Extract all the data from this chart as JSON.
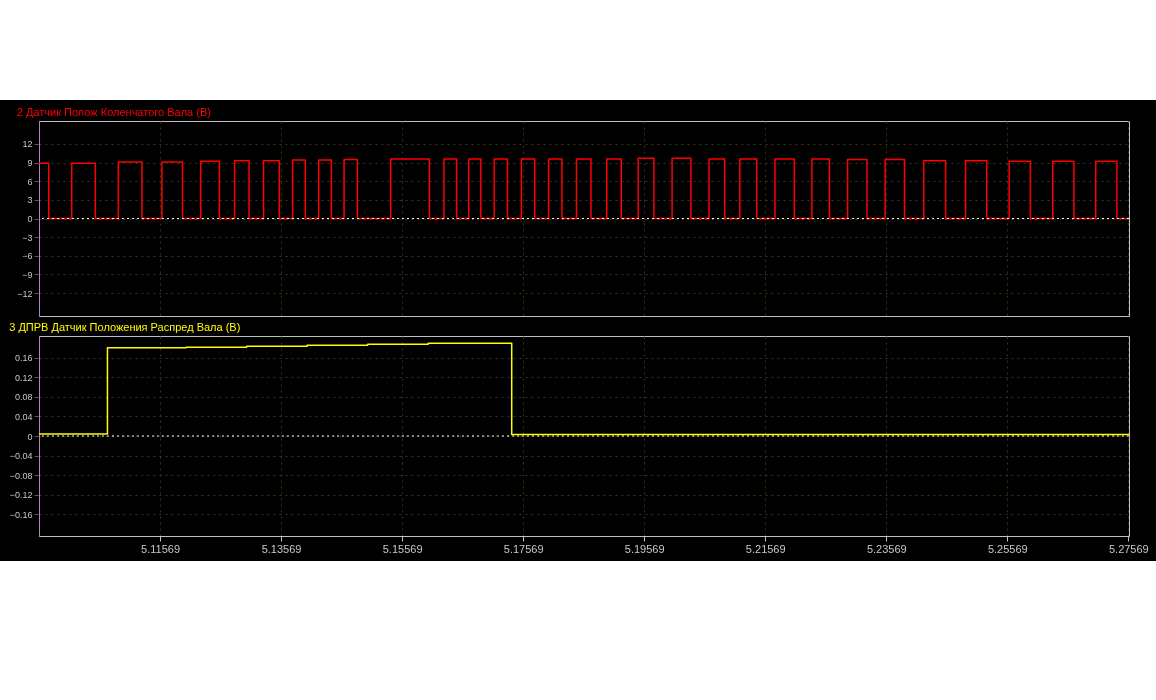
{
  "chart_data": [
    {
      "type": "step",
      "title": "2 Датчик Полож Коленчатого Вала (В)",
      "xlim": [
        5.09569,
        5.2758
      ],
      "xticks": [
        5.11569,
        5.13569,
        5.15569,
        5.17569,
        5.19569,
        5.21569,
        5.23569,
        5.25569,
        5.27569
      ],
      "ylim": [
        -15.7,
        15.7
      ],
      "yticks": [
        -12,
        -9,
        -6,
        -3,
        0,
        3,
        6,
        9,
        12
      ],
      "grid": true,
      "tick_labels": "y",
      "ref_lines": [
        {
          "axis": "y",
          "value": 0,
          "color": "#ffffff",
          "line_style": "dotted"
        }
      ],
      "series": [
        {
          "color": "#ff0000",
          "x": [
            5.0957,
            5.0973,
            5.1011,
            5.105,
            5.1088,
            5.1127,
            5.116,
            5.1194,
            5.1224,
            5.1255,
            5.128,
            5.1304,
            5.1328,
            5.1354,
            5.1376,
            5.1397,
            5.1419,
            5.144,
            5.1461,
            5.1483,
            5.1538,
            5.1602,
            5.1626,
            5.1647,
            5.1667,
            5.1687,
            5.1709,
            5.1731,
            5.1754,
            5.1776,
            5.1799,
            5.1821,
            5.1845,
            5.1869,
            5.1895,
            5.1919,
            5.1947,
            5.1973,
            5.2003,
            5.2034,
            5.2064,
            5.209,
            5.2115,
            5.2143,
            5.2173,
            5.2205,
            5.2234,
            5.2263,
            5.2293,
            5.2325,
            5.2355,
            5.2387,
            5.2419,
            5.2455,
            5.2488,
            5.2523,
            5.256,
            5.2595,
            5.2632,
            5.2667,
            5.2703,
            5.2738,
            5.2758
          ],
          "values": [
            8.9,
            0,
            8.9,
            0,
            9.1,
            0,
            9.1,
            0,
            9.2,
            0,
            9.3,
            0,
            9.3,
            0,
            9.4,
            0,
            9.4,
            0,
            9.5,
            0,
            9.6,
            0,
            9.6,
            0,
            9.6,
            0,
            9.6,
            0,
            9.6,
            0,
            9.6,
            0,
            9.6,
            0,
            9.6,
            0,
            9.7,
            0,
            9.7,
            0,
            9.6,
            0,
            9.6,
            0,
            9.6,
            0,
            9.6,
            0,
            9.5,
            0,
            9.5,
            0,
            9.3,
            0,
            9.3,
            0,
            9.2,
            0,
            9.2,
            0,
            9.2,
            0,
            0
          ]
        }
      ]
    },
    {
      "type": "step",
      "title": "3 ДПРВ Датчик Положения Распред Вала (В)",
      "xlim": [
        5.09569,
        5.2758
      ],
      "xticks": [
        5.11569,
        5.13569,
        5.15569,
        5.17569,
        5.19569,
        5.21569,
        5.23569,
        5.25569,
        5.27569
      ],
      "ylim": [
        -0.205,
        0.205
      ],
      "yticks": [
        -0.16,
        -0.12,
        -0.08,
        -0.04,
        0,
        0.04,
        0.08,
        0.12,
        0.16
      ],
      "grid": true,
      "ref_lines": [
        {
          "axis": "y",
          "value": 0,
          "color": "#ffffff",
          "line_style": "dotted"
        }
      ],
      "series": [
        {
          "color": "#ffff00",
          "x": [
            5.0957,
            5.107,
            5.12,
            5.13,
            5.14,
            5.15,
            5.16,
            5.1738,
            5.2758
          ],
          "values": [
            0.004,
            0.181,
            0.182,
            0.184,
            0.186,
            0.188,
            0.19,
            0.003,
            0.003
          ]
        }
      ]
    }
  ]
}
